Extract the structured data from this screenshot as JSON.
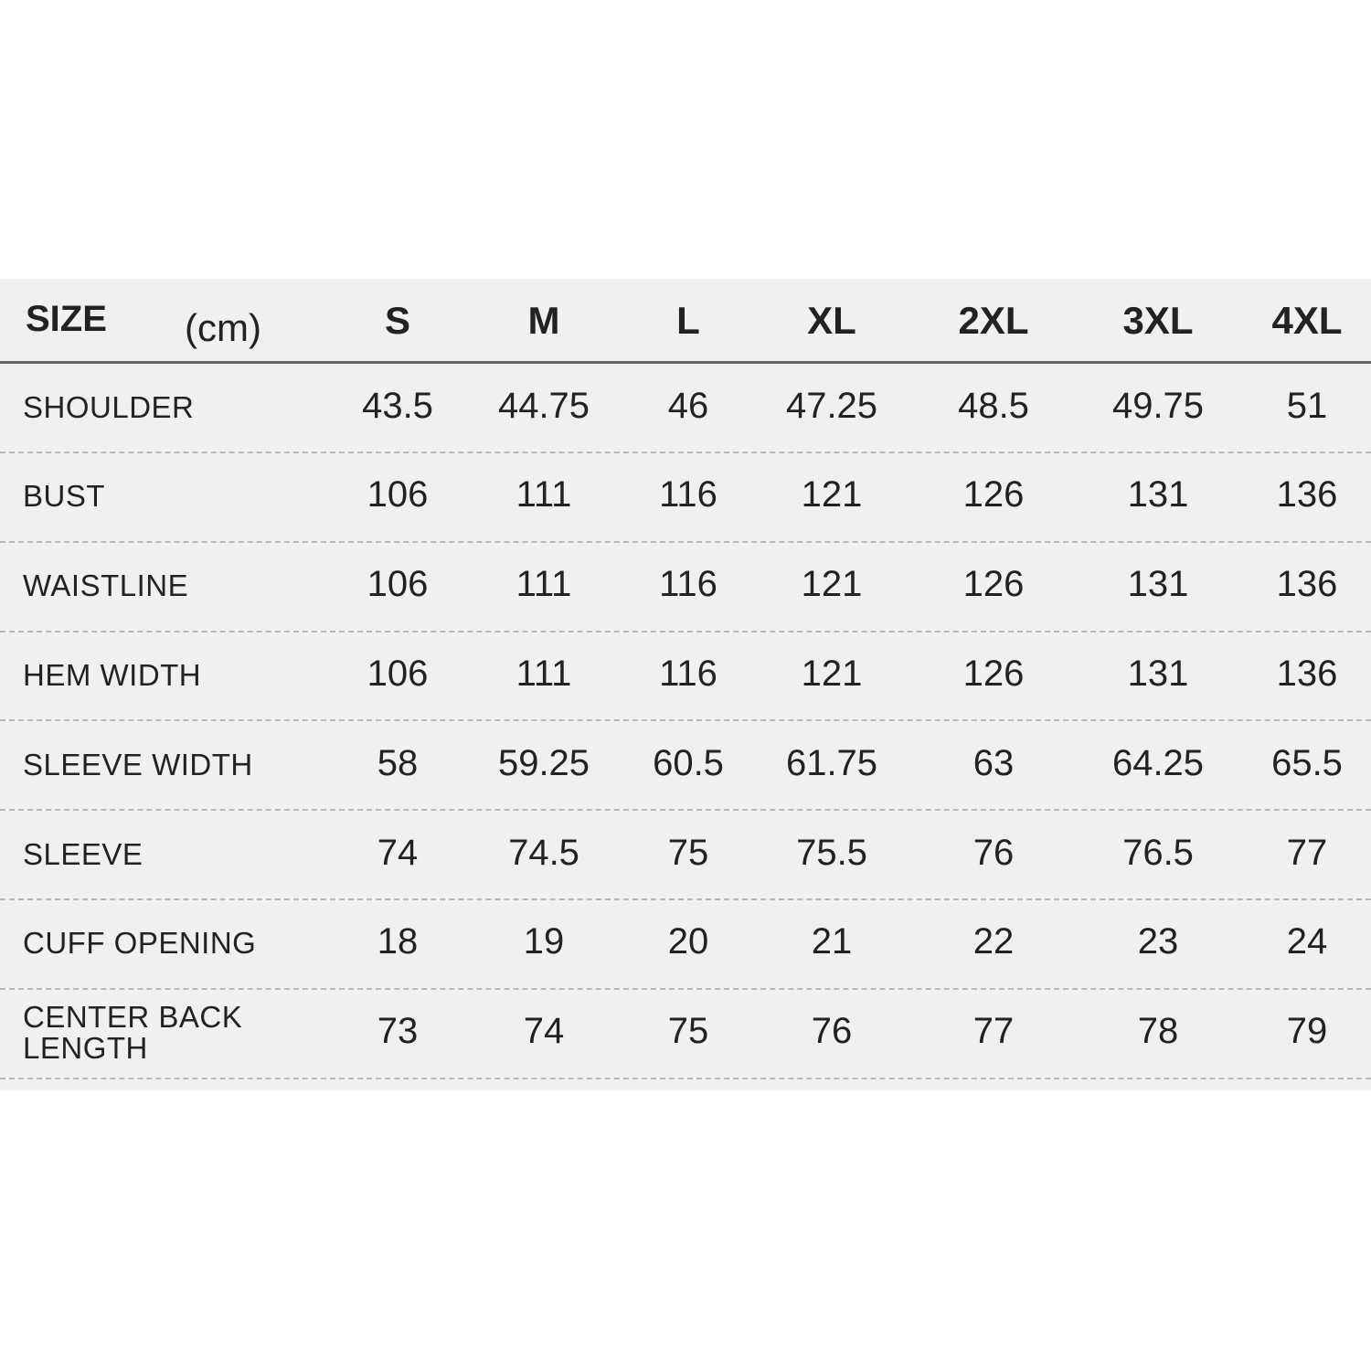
{
  "header": {
    "title": "SIZE",
    "unit": "(cm)",
    "sizes": [
      "S",
      "M",
      "L",
      "XL",
      "2XL",
      "3XL",
      "4XL"
    ]
  },
  "rows": [
    {
      "label": "SHOULDER",
      "values": [
        "43.5",
        "44.75",
        "46",
        "47.25",
        "48.5",
        "49.75",
        "51"
      ]
    },
    {
      "label": "BUST",
      "values": [
        "106",
        "111",
        "116",
        "121",
        "126",
        "131",
        "136"
      ]
    },
    {
      "label": "WAISTLINE",
      "values": [
        "106",
        "111",
        "116",
        "121",
        "126",
        "131",
        "136"
      ]
    },
    {
      "label": "HEM WIDTH",
      "values": [
        "106",
        "111",
        "116",
        "121",
        "126",
        "131",
        "136"
      ]
    },
    {
      "label": "SLEEVE WIDTH",
      "values": [
        "58",
        "59.25",
        "60.5",
        "61.75",
        "63",
        "64.25",
        "65.5"
      ]
    },
    {
      "label": "SLEEVE",
      "values": [
        "74",
        "74.5",
        "75",
        "75.5",
        "76",
        "76.5",
        "77"
      ]
    },
    {
      "label": "CUFF OPENING",
      "values": [
        "18",
        "19",
        "20",
        "21",
        "22",
        "23",
        "24"
      ]
    },
    {
      "label": "CENTER BACK LENGTH",
      "values": [
        "73",
        "74",
        "75",
        "76",
        "77",
        "78",
        "79"
      ]
    }
  ]
}
